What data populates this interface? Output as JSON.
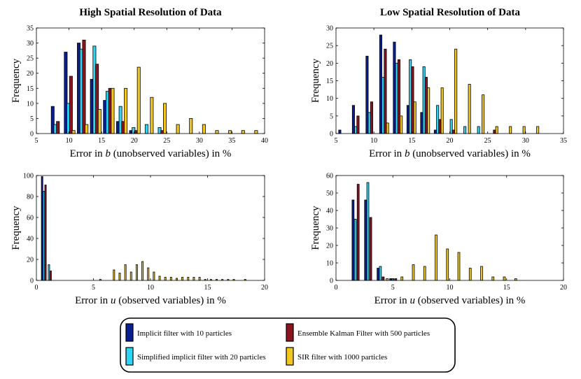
{
  "colors": {
    "implicit": "#0a1f8f",
    "simplified": "#2fd4f2",
    "enkf": "#8a1420",
    "sir": "#f2c81f"
  },
  "legend": {
    "items": [
      {
        "key": "implicit",
        "label": "Implicit filter with 10 particles"
      },
      {
        "key": "enkf",
        "label": "Ensemble Kalman Filter with 500 particles"
      },
      {
        "key": "simplified",
        "label": "Simplified implicit filter with 20 particles"
      },
      {
        "key": "sir",
        "label": "SIR filter with 1000 particles"
      }
    ]
  },
  "chart_data": [
    {
      "type": "bar",
      "title": "High Spatial Resolution of Data",
      "xlabel_prefix": "Error in ",
      "xlabel_var": "b",
      "xlabel_suffix": " (unobserved variables) in %",
      "ylabel": "Frequency",
      "xlim": [
        5,
        40
      ],
      "ylim": [
        0,
        35
      ],
      "xticks": [
        5,
        10,
        15,
        20,
        25,
        30,
        35,
        40
      ],
      "yticks": [
        0,
        5,
        10,
        15,
        20,
        25,
        30,
        35
      ],
      "bar_width": 0.45,
      "series": [
        {
          "key": "implicit",
          "x": [
            7.5,
            9.5,
            11.5,
            13.5,
            15.5,
            17.5,
            19.5
          ],
          "values": [
            9,
            27,
            30,
            18,
            11,
            4,
            1
          ]
        },
        {
          "key": "simplified",
          "x": [
            7.9,
            9.9,
            11.9,
            13.9,
            15.9,
            17.9,
            19.9,
            21.9,
            23.9
          ],
          "values": [
            3,
            10,
            28,
            29,
            14,
            9,
            2,
            3,
            2
          ]
        },
        {
          "key": "enkf",
          "x": [
            8.3,
            10.3,
            12.3,
            14.3,
            16.3,
            18.3,
            20.3,
            22.3,
            24.3
          ],
          "values": [
            4,
            19,
            31,
            23,
            15,
            4,
            1,
            0,
            1
          ]
        },
        {
          "key": "sir",
          "x": [
            10.7,
            12.7,
            14.7,
            16.7,
            18.7,
            20.7,
            22.7,
            24.7,
            26.7,
            28.7,
            30.7,
            32.7,
            34.7,
            36.7,
            38.7
          ],
          "values": [
            1,
            3,
            8,
            15,
            15,
            22,
            12,
            10,
            3,
            5,
            3,
            1,
            1,
            1,
            1
          ]
        }
      ]
    },
    {
      "type": "bar",
      "title": "Low Spatial Resolution of Data",
      "xlabel_prefix": "Error in ",
      "xlabel_var": "b",
      "xlabel_suffix": " (unobserved variables) in %",
      "ylabel": "Frequency",
      "xlim": [
        5,
        35
      ],
      "ylim": [
        0,
        30
      ],
      "xticks": [
        5,
        10,
        15,
        20,
        25,
        30,
        35
      ],
      "yticks": [
        0,
        5,
        10,
        15,
        20,
        25,
        30
      ],
      "bar_width": 0.3,
      "series": [
        {
          "key": "implicit",
          "x": [
            5.5,
            7.3,
            9.1,
            10.9,
            12.7,
            14.5,
            16.3,
            18.1
          ],
          "values": [
            1,
            8,
            22,
            28,
            26,
            8,
            6,
            1
          ]
        },
        {
          "key": "simplified",
          "x": [
            7.6,
            9.4,
            11.2,
            13.0,
            14.8,
            16.6,
            18.4,
            20.2,
            22.0,
            23.8
          ],
          "values": [
            2,
            6,
            16,
            20,
            21,
            19,
            8,
            4,
            2,
            2
          ]
        },
        {
          "key": "enkf",
          "x": [
            7.9,
            9.7,
            11.5,
            13.3,
            15.1,
            16.9,
            18.7,
            20.5,
            22.3,
            24.1,
            25.9
          ],
          "values": [
            5,
            9,
            24,
            21,
            19,
            16,
            4,
            1,
            0,
            0,
            1
          ]
        },
        {
          "key": "sir",
          "x": [
            11.8,
            13.6,
            15.4,
            17.2,
            19.0,
            20.8,
            22.6,
            24.4,
            26.2,
            28.0,
            29.8,
            31.6
          ],
          "values": [
            3,
            5,
            9,
            13,
            13,
            24,
            14,
            11,
            2,
            2,
            2,
            2
          ]
        }
      ]
    },
    {
      "type": "bar",
      "title": "",
      "xlabel_prefix": "Error in ",
      "xlabel_var": "u",
      "xlabel_suffix": " (observed variables) in %",
      "ylabel": "Frequency",
      "xlim": [
        0,
        20
      ],
      "ylim": [
        0,
        100
      ],
      "xticks": [
        0,
        5,
        10,
        15,
        20
      ],
      "yticks": [
        0,
        20,
        40,
        60,
        80,
        100
      ],
      "bar_width": 0.13,
      "series": [
        {
          "key": "implicit",
          "x": [
            0.5
          ],
          "values": [
            99
          ]
        },
        {
          "key": "simplified",
          "x": [
            0.65,
            1.1
          ],
          "values": [
            85,
            15
          ]
        },
        {
          "key": "enkf",
          "x": [
            0.8,
            1.25
          ],
          "values": [
            91,
            9
          ]
        },
        {
          "key": "sir",
          "x": [
            5.6,
            6.8,
            7.3,
            7.8,
            8.3,
            8.8,
            9.3,
            9.8,
            10.3,
            10.8,
            11.3,
            11.8,
            12.3,
            12.8,
            13.3,
            13.8,
            14.3,
            14.8,
            15.3,
            15.8,
            16.3,
            16.8,
            17.3,
            18.3
          ],
          "values": [
            1,
            10,
            7,
            15,
            8,
            15,
            18,
            12,
            8,
            4,
            3,
            3,
            2,
            3,
            3,
            3,
            3,
            1,
            1,
            1,
            1,
            1,
            1,
            1
          ]
        }
      ]
    },
    {
      "type": "bar",
      "title": "",
      "xlabel_prefix": "Error in ",
      "xlabel_var": "u",
      "xlabel_suffix": " (observed variables) in %",
      "ylabel": "Frequency",
      "xlim": [
        0,
        20
      ],
      "ylim": [
        0,
        60
      ],
      "xticks": [
        0,
        5,
        10,
        15,
        20
      ],
      "yticks": [
        0,
        10,
        20,
        30,
        40,
        50,
        60
      ],
      "bar_width": 0.18,
      "series": [
        {
          "key": "implicit",
          "x": [
            1.5,
            2.6,
            3.7,
            4.8
          ],
          "values": [
            46,
            46,
            7,
            1
          ]
        },
        {
          "key": "simplified",
          "x": [
            1.7,
            2.8,
            3.9,
            5.0
          ],
          "values": [
            35,
            56,
            8,
            1
          ]
        },
        {
          "key": "enkf",
          "x": [
            1.95,
            3.05,
            4.15,
            5.25
          ],
          "values": [
            55,
            36,
            2,
            1
          ]
        },
        {
          "key": "sir",
          "x": [
            4.5,
            5.8,
            6.8,
            7.8,
            8.8,
            9.8,
            10.8,
            11.8,
            12.8,
            13.8,
            14.8,
            15.8
          ],
          "values": [
            1,
            2,
            9,
            8,
            26,
            18,
            16,
            7,
            8,
            2,
            2,
            1
          ]
        }
      ]
    }
  ]
}
